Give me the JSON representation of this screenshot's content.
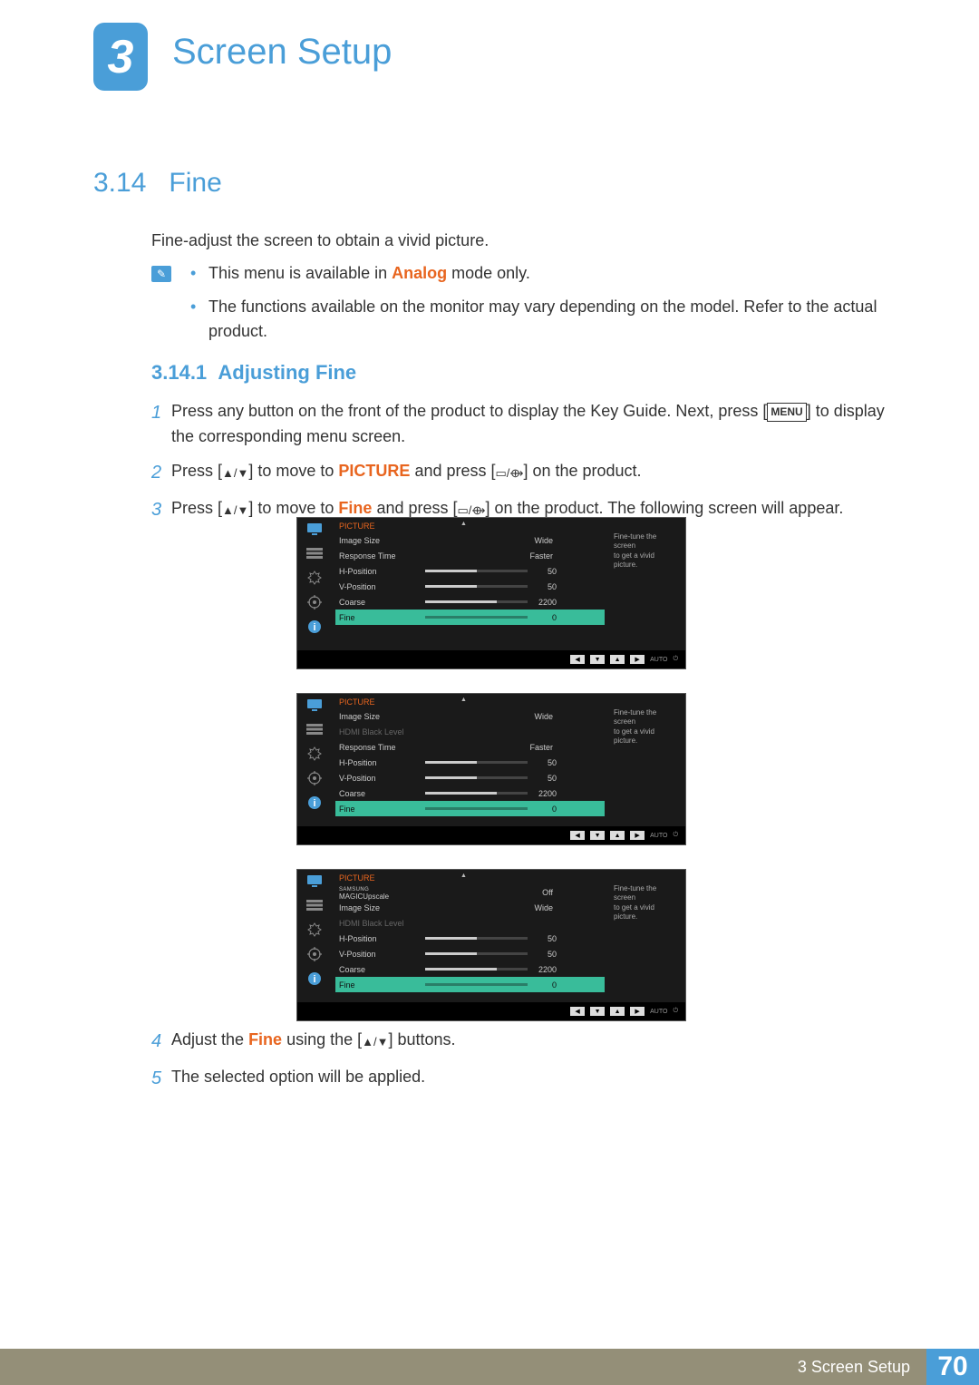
{
  "chapter": {
    "number": "3",
    "title": "Screen Setup"
  },
  "section": {
    "number": "3.14",
    "title": "Fine"
  },
  "intro": "Fine-adjust the screen to obtain a vivid picture.",
  "notes": {
    "n1a": "This menu is available in ",
    "n1b": "Analog",
    "n1c": " mode only.",
    "n2": "The functions available on the monitor may vary depending on the model. Refer to the actual product."
  },
  "subsection": {
    "number": "3.14.1",
    "title": "Adjusting Fine"
  },
  "steps": {
    "s1": "Press any button on the front of the product to display the Key Guide. Next, press [",
    "s1b": "] to display the corresponding menu screen.",
    "menu_label": "MENU",
    "s2a": "Press [",
    "s2b": "] to move to ",
    "s2c": "PICTURE",
    "s2d": " and press [",
    "s2e": "] on the product.",
    "s3a": "Press [",
    "s3b": "] to move to ",
    "s3c": "Fine",
    "s3d": " and press [",
    "s3e": "] on the product. The following screen will appear.",
    "s4a": "Adjust the ",
    "s4b": "Fine",
    "s4c": " using the [",
    "s4d": "] buttons.",
    "s5": "The selected option will be applied.",
    "num1": "1",
    "num2": "2",
    "num3": "3",
    "num4": "4",
    "num5": "5"
  },
  "osd_common": {
    "title": "PICTURE",
    "help": "Fine-tune the screen\nto get a vivid picture.",
    "auto": "AUTO"
  },
  "osd1": {
    "rows": [
      {
        "label": "Image Size",
        "value": "Wide",
        "type": "text"
      },
      {
        "label": "Response Time",
        "value": "Faster",
        "type": "text"
      },
      {
        "label": "H-Position",
        "value": "50",
        "type": "slider",
        "fill": 50
      },
      {
        "label": "V-Position",
        "value": "50",
        "type": "slider",
        "fill": 50
      },
      {
        "label": "Coarse",
        "value": "2200",
        "type": "slider",
        "fill": 70
      },
      {
        "label": "Fine",
        "value": "0",
        "type": "slider",
        "fill": 0,
        "sel": true
      }
    ]
  },
  "osd2": {
    "rows": [
      {
        "label": "Image Size",
        "value": "Wide",
        "type": "text"
      },
      {
        "label": "HDMI Black Level",
        "value": "",
        "type": "text",
        "dim": true
      },
      {
        "label": "Response Time",
        "value": "Faster",
        "type": "text"
      },
      {
        "label": "H-Position",
        "value": "50",
        "type": "slider",
        "fill": 50
      },
      {
        "label": "V-Position",
        "value": "50",
        "type": "slider",
        "fill": 50
      },
      {
        "label": "Coarse",
        "value": "2200",
        "type": "slider",
        "fill": 70
      },
      {
        "label": "Fine",
        "value": "0",
        "type": "slider",
        "fill": 0,
        "sel": true
      }
    ]
  },
  "osd3": {
    "upscale_top": "SAMSUNG",
    "upscale_bottom": "MAGICUpscale",
    "rows": [
      {
        "label": "SAMSUNG MAGICUpscale",
        "value": "Off",
        "type": "text",
        "special": "upscale"
      },
      {
        "label": "Image Size",
        "value": "Wide",
        "type": "text"
      },
      {
        "label": "HDMI Black Level",
        "value": "",
        "type": "text",
        "dim": true
      },
      {
        "label": "H-Position",
        "value": "50",
        "type": "slider",
        "fill": 50
      },
      {
        "label": "V-Position",
        "value": "50",
        "type": "slider",
        "fill": 50
      },
      {
        "label": "Coarse",
        "value": "2200",
        "type": "slider",
        "fill": 70
      },
      {
        "label": "Fine",
        "value": "0",
        "type": "slider",
        "fill": 0,
        "sel": true
      }
    ]
  },
  "footer": {
    "text": "3 Screen Setup",
    "page": "70"
  },
  "colors": {
    "blue": "#4a9ed8",
    "orange": "#e8651f",
    "teal": "#39bc9a",
    "footer_bg": "#948f78",
    "osd_bg": "#1a1a1a"
  }
}
